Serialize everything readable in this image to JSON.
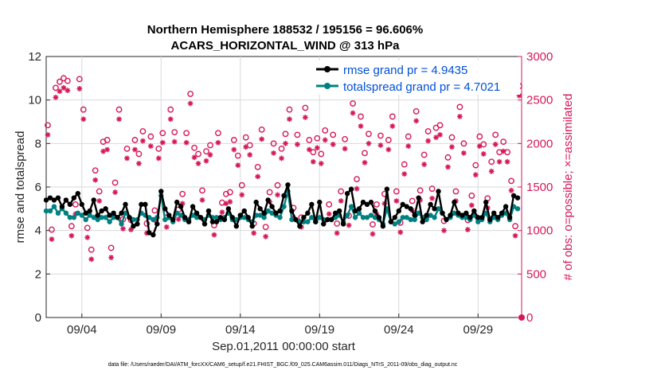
{
  "chart_data": {
    "type": "line",
    "title_line1": "Northern Hemisphere 188532 / 195156 = 96.606%",
    "title_line2": "ACARS_HORIZONTAL_WIND @ 313 hPa",
    "xlabel": "Sep.01,2011 00:00:00 start",
    "ylabel_left": "rmse and totalspread",
    "ylabel_right": "# of obs: o=possible; ×=assimilated",
    "footer": "data file: /Users/raeder/DAI/ATM_forcXX/CAM6_setup/f.e21.FHIST_BGC.f09_025.CAM6assim.011/Diags_NTrS_2011-09/obs_diag_output.nc",
    "xlim": [
      0.75,
      30.75
    ],
    "ylim_left": [
      0,
      12
    ],
    "ylim_right": [
      0,
      3000
    ],
    "x_tick_positions": [
      3,
      8,
      13,
      18,
      23,
      28
    ],
    "x_tick_labels": [
      "09/04",
      "09/09",
      "09/14",
      "09/19",
      "09/24",
      "09/29"
    ],
    "y_left_ticks": [
      "0",
      "2",
      "4",
      "6",
      "8",
      "10",
      "12"
    ],
    "y_right_ticks": [
      "0",
      "500",
      "1000",
      "1500",
      "2000",
      "2500",
      "3000"
    ],
    "colors": {
      "rmse": "#000000",
      "spread": "#008080",
      "obs": "#d6185a",
      "legend_text": "#0050d8"
    },
    "legend": [
      {
        "name": "rmse grand pr = 4.9435"
      },
      {
        "name": "totalspread grand pr = 4.7021"
      }
    ],
    "x": [
      0.75,
      1.0,
      1.25,
      1.5,
      1.75,
      2.0,
      2.25,
      2.5,
      2.75,
      3.0,
      3.25,
      3.5,
      3.75,
      4.0,
      4.25,
      4.5,
      4.75,
      5.0,
      5.25,
      5.5,
      5.75,
      6.0,
      6.25,
      6.5,
      6.75,
      7.0,
      7.25,
      7.5,
      7.75,
      8.0,
      8.25,
      8.5,
      8.75,
      9.0,
      9.25,
      9.5,
      9.75,
      10.0,
      10.25,
      10.5,
      10.75,
      11.0,
      11.25,
      11.5,
      11.75,
      12.0,
      12.25,
      12.5,
      12.75,
      13.0,
      13.25,
      13.5,
      13.75,
      14.0,
      14.25,
      14.5,
      14.75,
      15.0,
      15.25,
      15.5,
      15.75,
      16.0,
      16.25,
      16.5,
      16.75,
      17.0,
      17.25,
      17.5,
      17.75,
      18.0,
      18.25,
      18.5,
      18.75,
      19.0,
      19.25,
      19.5,
      19.75,
      20.0,
      20.25,
      20.5,
      20.75,
      21.0,
      21.25,
      21.5,
      21.75,
      22.0,
      22.25,
      22.5,
      22.75,
      23.0,
      23.25,
      23.5,
      23.75,
      24.0,
      24.25,
      24.5,
      24.75,
      25.0,
      25.25,
      25.5,
      25.75,
      26.0,
      26.25,
      26.5,
      26.75,
      27.0,
      27.25,
      27.5,
      27.75,
      28.0,
      28.25,
      28.5,
      28.75,
      29.0,
      29.25,
      29.5,
      29.75,
      30.0,
      30.25,
      30.5
    ],
    "series": [
      {
        "name": "rmse",
        "values": [
          5.4,
          5.5,
          5.4,
          5.5,
          5.1,
          5.4,
          5.2,
          5.5,
          5.7,
          5.2,
          4.8,
          4.9,
          5.4,
          4.7,
          4.9,
          5.0,
          4.7,
          4.8,
          4.6,
          4.8,
          5.2,
          4.6,
          4.2,
          4.3,
          5.2,
          5.2,
          3.9,
          3.8,
          4.3,
          5.8,
          5.0,
          4.7,
          4.5,
          5.3,
          5.1,
          4.6,
          4.4,
          5.1,
          4.8,
          4.6,
          4.3,
          4.9,
          4.4,
          4.4,
          4.6,
          4.5,
          5.0,
          4.6,
          4.2,
          4.7,
          4.9,
          4.6,
          4.2,
          5.3,
          5.0,
          4.8,
          5.4,
          5.1,
          4.8,
          4.9,
          5.6,
          6.1,
          4.9,
          4.5,
          4.2,
          4.6,
          4.8,
          5.2,
          4.4,
          5.3,
          4.3,
          4.5,
          4.5,
          4.8,
          4.9,
          4.3,
          5.7,
          5.9,
          4.9,
          5.0,
          5.3,
          5.2,
          5.3,
          4.9,
          4.6,
          4.2,
          5.9,
          4.4,
          4.6,
          4.9,
          5.2,
          5.1,
          5.0,
          4.7,
          5.5,
          4.4,
          4.7,
          5.2,
          5.0,
          5.8,
          4.8,
          4.5,
          4.7,
          5.3,
          4.8,
          4.7,
          4.8,
          4.6,
          4.9,
          4.6,
          4.6,
          5.3,
          4.5,
          4.8,
          4.6,
          4.8,
          5.1,
          4.6,
          5.6,
          5.5
        ]
      },
      {
        "name": "totalspread",
        "values": [
          4.9,
          4.9,
          5.1,
          4.8,
          5.0,
          4.8,
          4.6,
          4.6,
          4.8,
          4.7,
          4.5,
          4.7,
          4.6,
          4.5,
          4.6,
          4.6,
          4.4,
          4.6,
          4.6,
          4.3,
          4.8,
          4.6,
          4.5,
          4.5,
          4.8,
          4.7,
          4.6,
          4.5,
          4.6,
          5.6,
          4.5,
          4.6,
          4.4,
          4.8,
          4.7,
          4.5,
          4.5,
          4.7,
          4.6,
          4.6,
          4.5,
          4.7,
          4.6,
          4.6,
          4.5,
          4.6,
          4.8,
          4.5,
          4.5,
          4.6,
          4.6,
          4.5,
          4.4,
          4.7,
          4.7,
          4.6,
          4.9,
          4.8,
          4.7,
          4.6,
          5.1,
          5.8,
          4.5,
          4.5,
          4.4,
          4.4,
          4.4,
          4.6,
          4.4,
          4.6,
          4.5,
          4.5,
          4.5,
          4.6,
          4.7,
          4.4,
          4.7,
          5.1,
          4.6,
          4.8,
          4.6,
          4.6,
          4.7,
          4.6,
          4.5,
          4.3,
          5.0,
          4.4,
          4.3,
          4.4,
          4.6,
          4.6,
          4.5,
          4.5,
          4.8,
          4.6,
          4.5,
          4.7,
          4.6,
          5.0,
          4.8,
          4.5,
          4.6,
          4.8,
          4.7,
          4.6,
          4.6,
          4.5,
          4.7,
          4.4,
          4.5,
          4.8,
          4.4,
          4.6,
          4.5,
          4.7,
          4.8,
          4.5,
          5.1,
          5.0
        ]
      }
    ],
    "obs_x": [
      0.85,
      1.1,
      1.35,
      1.6,
      1.85,
      2.1,
      2.35,
      2.6,
      2.85,
      3.1,
      3.35,
      3.6,
      3.85,
      4.1,
      4.35,
      4.6,
      4.85,
      5.1,
      5.35,
      5.6,
      5.85,
      6.1,
      6.35,
      6.6,
      6.85,
      7.1,
      7.35,
      7.6,
      7.85,
      8.1,
      8.35,
      8.6,
      8.85,
      9.1,
      9.35,
      9.6,
      9.85,
      10.1,
      10.35,
      10.6,
      10.85,
      11.1,
      11.35,
      11.6,
      11.85,
      12.1,
      12.35,
      12.6,
      12.85,
      13.1,
      13.35,
      13.6,
      13.85,
      14.1,
      14.35,
      14.6,
      14.85,
      15.1,
      15.35,
      15.6,
      15.85,
      16.1,
      16.35,
      16.6,
      16.85,
      17.1,
      17.35,
      17.6,
      17.85,
      18.1,
      18.35,
      18.6,
      18.85,
      19.1,
      19.35,
      19.6,
      19.85,
      20.1,
      20.35,
      20.6,
      20.85,
      21.1,
      21.35,
      21.6,
      21.85,
      22.1,
      22.35,
      22.6,
      22.85,
      23.1,
      23.35,
      23.6,
      23.85,
      24.1,
      24.35,
      24.6,
      24.85,
      25.1,
      25.35,
      25.6,
      25.85,
      26.1,
      26.35,
      26.6,
      26.85,
      27.1,
      27.35,
      27.6,
      27.85,
      28.1,
      28.35,
      28.6,
      28.85,
      29.1,
      29.35,
      29.6,
      29.85,
      30.1,
      30.35,
      30.6
    ],
    "obs_possible": [
      2210,
      1010,
      2640,
      2710,
      2750,
      2720,
      1050,
      1300,
      2740,
      2390,
      1030,
      780,
      1690,
      1450,
      2020,
      2040,
      800,
      1550,
      2390,
      1130,
      1940,
      1120,
      2040,
      1880,
      2140,
      1080,
      2080,
      1230,
      1940,
      2120,
      1150,
      2390,
      2130,
      1240,
      1420,
      2120,
      2570,
      1950,
      1880,
      1460,
      1910,
      1980,
      1060,
      2120,
      1320,
      1420,
      1440,
      2040,
      1860,
      1520,
      2070,
      1980,
      1080,
      1730,
      2160,
      1040,
      1440,
      2000,
      1520,
      1940,
      2110,
      2390,
      1260,
      2100,
      1150,
      2410,
      2040,
      1900,
      2060,
      1880,
      2150,
      1300,
      2100,
      1080,
      1450,
      2050,
      1170,
      2460,
      1590,
      2310,
      1890,
      2110,
      1070,
      1300,
      2090,
      1420,
      2040,
      2310,
      1450,
      1090,
      1760,
      2080,
      1340,
      2370,
      1460,
      1870,
      2140,
      1480,
      2180,
      2210,
      1110,
      1840,
      2070,
      1450,
      2420,
      2000,
      1120,
      1400,
      1750,
      2080,
      1990,
      1370,
      1790,
      2100,
      1900,
      2020,
      1900,
      1570,
      1050,
      2660
    ]
  }
}
